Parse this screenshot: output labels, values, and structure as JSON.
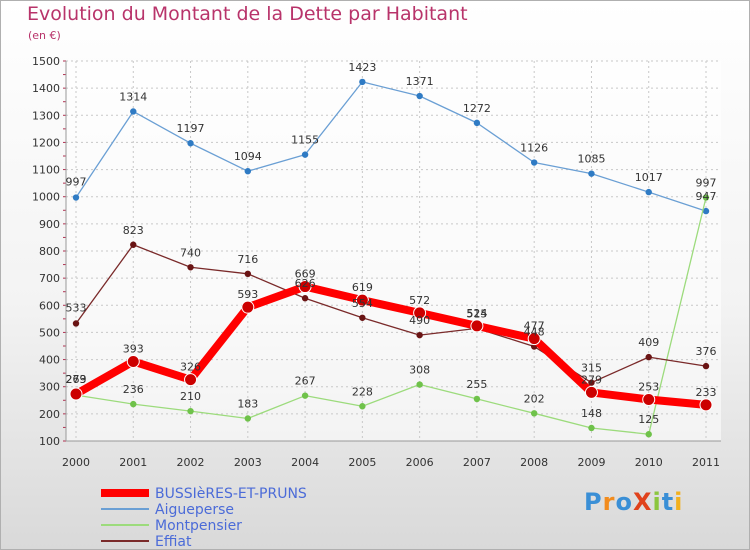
{
  "header": {
    "title": "Evolution du Montant de la Dette par Habitant",
    "unit": "(en €)"
  },
  "logo": {
    "text": "ProXiti",
    "letter_colors": [
      "#3a8fd6",
      "#f28c1e",
      "#3a8fd6",
      "#e0421c",
      "#8cc63e",
      "#3a8fd6",
      "#f2b01e"
    ]
  },
  "chart_data": {
    "type": "line",
    "title": "Evolution du Montant de la Dette par Habitant",
    "ylabel": "(en €)",
    "xlabel": "",
    "x": [
      "2000",
      "2001",
      "2002",
      "2003",
      "2004",
      "2005",
      "2006",
      "2007",
      "2008",
      "2009",
      "2010",
      "2011"
    ],
    "ylim": [
      100,
      1500
    ],
    "yticks": [
      100,
      200,
      300,
      400,
      500,
      600,
      700,
      800,
      900,
      1000,
      1100,
      1200,
      1300,
      1400,
      1500
    ],
    "grid": true,
    "legend_position": "bottom-left",
    "series": [
      {
        "name": "BUSSIèRES-ET-PRUNS",
        "color": "#ff0000",
        "marker_color": "#cc0000",
        "values": [
          273,
          393,
          326,
          593,
          669,
          619,
          572,
          524,
          477,
          279,
          253,
          233
        ],
        "labels": [
          "273",
          "393",
          "326",
          "593",
          "669",
          "619",
          "572",
          "524",
          "477",
          "279",
          "253",
          "233"
        ]
      },
      {
        "name": "Aigueperse",
        "color": "#6a9fd4",
        "marker_color": "#2f7bc4",
        "values": [
          997,
          1314,
          1197,
          1094,
          1155,
          1423,
          1371,
          1272,
          1126,
          1085,
          1017,
          947
        ],
        "labels": [
          "997",
          "1314",
          "1197",
          "1094",
          "1155",
          "1423",
          "1371",
          "1272",
          "1126",
          "1085",
          "1017",
          "947"
        ]
      },
      {
        "name": "Montpensier",
        "color": "#9cdb7c",
        "marker_color": "#6fc24a",
        "values": [
          269,
          236,
          210,
          183,
          267,
          228,
          308,
          255,
          202,
          148,
          125,
          997
        ],
        "labels": [
          "269",
          "236",
          "210",
          "183",
          "267",
          "228",
          "308",
          "255",
          "202",
          "148",
          "125",
          "997"
        ]
      },
      {
        "name": "Effiat",
        "color": "#7a2a2a",
        "marker_color": "#6a1414",
        "values": [
          533,
          823,
          740,
          716,
          626,
          554,
          490,
          515,
          448,
          315,
          409,
          376
        ],
        "labels": [
          "533",
          "823",
          "740",
          "716",
          "626",
          "554",
          "490",
          "515",
          "448",
          "315",
          "409",
          "376"
        ]
      }
    ]
  }
}
